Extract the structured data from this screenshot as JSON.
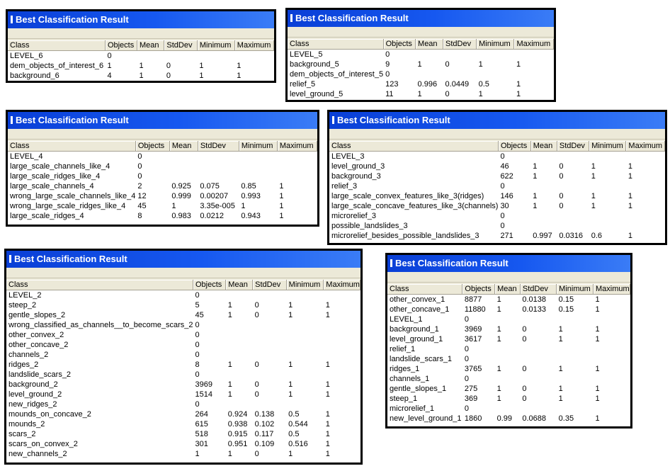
{
  "columns": [
    "Class",
    "Objects",
    "Mean",
    "StdDev",
    "Minimum",
    "Maximum"
  ],
  "windows": [
    {
      "title": "Best Classification Result",
      "rows": [
        [
          "LEVEL_6",
          "0",
          "",
          "",
          "",
          ""
        ],
        [
          "dem_objects_of_interest_6",
          "1",
          "1",
          "0",
          "1",
          "1"
        ],
        [
          "background_6",
          "4",
          "1",
          "0",
          "1",
          "1"
        ]
      ]
    },
    {
      "title": "Best Classification Result",
      "rows": [
        [
          "LEVEL_5",
          "0",
          "",
          "",
          "",
          ""
        ],
        [
          "background_5",
          "9",
          "1",
          "0",
          "1",
          "1"
        ],
        [
          "dem_objects_of_interest_5",
          "0",
          "",
          "",
          "",
          ""
        ],
        [
          "relief_5",
          "123",
          "0.996",
          "0.0449",
          "0.5",
          "1"
        ],
        [
          "level_ground_5",
          "11",
          "1",
          "0",
          "1",
          "1"
        ]
      ]
    },
    {
      "title": "Best Classification Result",
      "rows": [
        [
          "LEVEL_4",
          "0",
          "",
          "",
          "",
          ""
        ],
        [
          "large_scale_channels_like_4",
          "0",
          "",
          "",
          "",
          ""
        ],
        [
          "large_scale_ridges_like_4",
          "0",
          "",
          "",
          "",
          ""
        ],
        [
          "large_scale_channels_4",
          "2",
          "0.925",
          "0.075",
          "0.85",
          "1"
        ],
        [
          "wrong_large_scale_channels_like_4",
          "12",
          "0.999",
          "0.00207",
          "0.993",
          "1"
        ],
        [
          "wrong_large_scale_ridges_like_4",
          "45",
          "1",
          "3.35e-005",
          "1",
          "1"
        ],
        [
          "large_scale_ridges_4",
          "8",
          "0.983",
          "0.0212",
          "0.943",
          "1"
        ]
      ]
    },
    {
      "title": "Best Classification Result",
      "rows": [
        [
          "LEVEL_3",
          "0",
          "",
          "",
          "",
          ""
        ],
        [
          "level_ground_3",
          "46",
          "1",
          "0",
          "1",
          "1"
        ],
        [
          "background_3",
          "622",
          "1",
          "0",
          "1",
          "1"
        ],
        [
          "relief_3",
          "0",
          "",
          "",
          "",
          ""
        ],
        [
          "large_scale_convex_features_like_3(ridges)",
          "146",
          "1",
          "0",
          "1",
          "1"
        ],
        [
          "large_scale_concave_features_like_3(channels)",
          "30",
          "1",
          "0",
          "1",
          "1"
        ],
        [
          "microrelief_3",
          "0",
          "",
          "",
          "",
          ""
        ],
        [
          "possible_landslides_3",
          "0",
          "",
          "",
          "",
          ""
        ],
        [
          "microrelief_besides_possible_landslides_3",
          "271",
          "0.997",
          "0.0316",
          "0.6",
          "1"
        ]
      ]
    },
    {
      "title": "Best Classification Result",
      "rows": [
        [
          "LEVEL_2",
          "0",
          "",
          "",
          "",
          ""
        ],
        [
          "steep_2",
          "5",
          "1",
          "0",
          "1",
          "1"
        ],
        [
          "gentle_slopes_2",
          "45",
          "1",
          "0",
          "1",
          "1"
        ],
        [
          "wrong_classified_as_channels__to_become_scars_2",
          "0",
          "",
          "",
          "",
          ""
        ],
        [
          "other_convex_2",
          "0",
          "",
          "",
          "",
          ""
        ],
        [
          "other_concave_2",
          "0",
          "",
          "",
          "",
          ""
        ],
        [
          "channels_2",
          "0",
          "",
          "",
          "",
          ""
        ],
        [
          "ridges_2",
          "8",
          "1",
          "0",
          "1",
          "1"
        ],
        [
          "landslide_scars_2",
          "0",
          "",
          "",
          "",
          ""
        ],
        [
          "background_2",
          "3969",
          "1",
          "0",
          "1",
          "1"
        ],
        [
          "level_ground_2",
          "1514",
          "1",
          "0",
          "1",
          "1"
        ],
        [
          "new_ridges_2",
          "0",
          "",
          "",
          "",
          ""
        ],
        [
          "mounds_on_concave_2",
          "264",
          "0.924",
          "0.138",
          "0.5",
          "1"
        ],
        [
          "mounds_2",
          "615",
          "0.938",
          "0.102",
          "0.544",
          "1"
        ],
        [
          "scars_2",
          "518",
          "0.915",
          "0.117",
          "0.5",
          "1"
        ],
        [
          "scars_on_convex_2",
          "301",
          "0.951",
          "0.109",
          "0.516",
          "1"
        ],
        [
          "new_channels_2",
          "1",
          "1",
          "0",
          "1",
          "1"
        ]
      ]
    },
    {
      "title": "Best Classification Result",
      "rows": [
        [
          "other_convex_1",
          "8877",
          "1",
          "0.0138",
          "0.15",
          "1"
        ],
        [
          "other_concave_1",
          "11880",
          "1",
          "0.0133",
          "0.15",
          "1"
        ],
        [
          "LEVEL_1",
          "0",
          "",
          "",
          "",
          ""
        ],
        [
          "background_1",
          "3969",
          "1",
          "0",
          "1",
          "1"
        ],
        [
          "level_ground_1",
          "3617",
          "1",
          "0",
          "1",
          "1"
        ],
        [
          "relief_1",
          "0",
          "",
          "",
          "",
          ""
        ],
        [
          "landslide_scars_1",
          "0",
          "",
          "",
          "",
          ""
        ],
        [
          "ridges_1",
          "3765",
          "1",
          "0",
          "1",
          "1"
        ],
        [
          "channels_1",
          "0",
          "",
          "",
          "",
          ""
        ],
        [
          "gentle_slopes_1",
          "275",
          "1",
          "0",
          "1",
          "1"
        ],
        [
          "steep_1",
          "369",
          "1",
          "0",
          "1",
          "1"
        ],
        [
          "microrelief_1",
          "0",
          "",
          "",
          "",
          ""
        ],
        [
          "new_level_ground_1",
          "1860",
          "0.99",
          "0.0688",
          "0.35",
          "1"
        ]
      ]
    }
  ]
}
